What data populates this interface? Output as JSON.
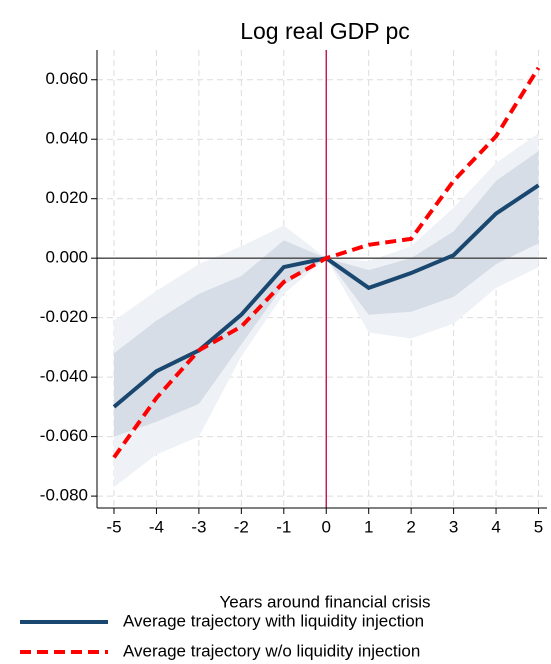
{
  "chart_data": {
    "type": "line",
    "title": "Log real GDP pc",
    "x_label": "Years around financial crisis",
    "x": [
      -5,
      -4,
      -3,
      -2,
      -1,
      0,
      1,
      2,
      3,
      4,
      5
    ],
    "series": [
      {
        "name": "Average trajectory with liquidity injection",
        "color": "#1a476f",
        "dash": false,
        "values": [
          -0.05,
          -0.038,
          -0.031,
          -0.019,
          -0.003,
          0,
          -0.01,
          -0.005,
          0.001,
          0.015,
          0.0245
        ]
      },
      {
        "name": "Average trajectory w/o liquidity injection",
        "color": "#ff0000",
        "dash": true,
        "values": [
          -0.067,
          -0.047,
          -0.031,
          -0.023,
          -0.008,
          0,
          0.0045,
          0.0065,
          0.026,
          0.041,
          0.064
        ]
      }
    ],
    "bands": [
      {
        "color": "#eef1f5",
        "lower": [
          -0.077,
          -0.066,
          -0.06,
          -0.033,
          -0.012,
          0,
          -0.025,
          -0.027,
          -0.022,
          -0.01,
          -0.003
        ],
        "upper": [
          -0.021,
          -0.011,
          -0.002,
          0.004,
          0.011,
          0,
          -0.001,
          0.004,
          0.017,
          0.032,
          0.042
        ]
      },
      {
        "color": "#d6dde6",
        "lower": [
          -0.06,
          -0.055,
          -0.049,
          -0.029,
          -0.009,
          0,
          -0.019,
          -0.018,
          -0.013,
          -0.002,
          0.005
        ],
        "upper": [
          -0.032,
          -0.021,
          -0.012,
          -0.006,
          0.006,
          0,
          -0.004,
          0.0,
          0.009,
          0.026,
          0.036
        ]
      }
    ],
    "hline": {
      "value": 0,
      "color": "#444444"
    },
    "vline": {
      "value": 0,
      "color": "#c0003c"
    },
    "xlim": [
      -5.4,
      5.2
    ],
    "ylim": [
      -0.084,
      0.07
    ],
    "xticks": [
      -5,
      -4,
      -3,
      -2,
      -1,
      0,
      1,
      2,
      3,
      4,
      5
    ],
    "yticks": [
      {
        "value": -0.08,
        "label": "-0.080"
      },
      {
        "value": -0.06,
        "label": "-0.060"
      },
      {
        "value": -0.04,
        "label": "-0.040"
      },
      {
        "value": -0.02,
        "label": "-0.020"
      },
      {
        "value": 0,
        "label": "0.000"
      },
      {
        "value": 0.02,
        "label": "0.020"
      },
      {
        "value": 0.04,
        "label": "0.040"
      },
      {
        "value": 0.06,
        "label": "0.060"
      }
    ],
    "grid": true,
    "legend": "bottom"
  }
}
